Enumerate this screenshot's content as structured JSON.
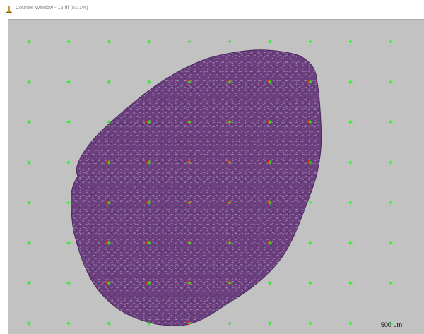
{
  "window": {
    "title": "Counter Window - 16.tif (51.1%)",
    "app_icon": "imagej-microscope-icon"
  },
  "image": {
    "background_color": "#c2c2c2",
    "tissue_color": "#6b3f7e",
    "grid_marker_color": "#22ee22",
    "counted_marker_color": "#e02020",
    "grid_rows": 8,
    "grid_columns": 10
  },
  "scale_bar": {
    "label": "500 µm"
  }
}
